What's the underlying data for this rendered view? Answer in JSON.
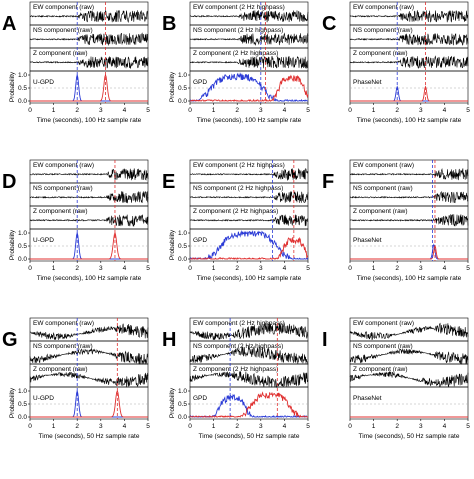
{
  "figure": {
    "colors": {
      "p_pick": "#2b3bd6",
      "s_pick": "#e03030",
      "trace": "#000000",
      "threshold": "#aaaaaa"
    }
  },
  "chart_data": [
    {
      "id": "A",
      "panel_label": "A",
      "type": "line",
      "traces": [
        "EW component (raw)",
        "NS component (raw)",
        "Z component (raw)"
      ],
      "model": "U-GPD",
      "p_pick_s": 2.0,
      "s_pick_s": 3.2,
      "onset_s": 2.0,
      "prob_ylabel": "Probability",
      "prob_yticks": [
        "0.0",
        "0.5",
        "1.0"
      ],
      "threshold": 0.5,
      "xlabel": "Time (seconds), 100 Hz sample rate",
      "xticks": [
        "0",
        "1",
        "2",
        "3",
        "4",
        "5"
      ],
      "xlim": [
        0,
        5
      ],
      "series": [
        {
          "peak_s": 2.0,
          "peak": 1.0,
          "width": 0.12
        },
        {
          "peak_s": 3.2,
          "peak": 1.0,
          "width": 0.14
        }
      ]
    },
    {
      "id": "B",
      "panel_label": "B",
      "type": "line",
      "traces": [
        "EW component (2 Hz highpass)",
        "NS component (2 Hz highpass)",
        "Z component (2 Hz highpass)"
      ],
      "model": "GPD",
      "p_pick_s": 3.0,
      "s_pick_s": 3.2,
      "onset_s": 2.0,
      "prob_ylabel": "Probability",
      "prob_yticks": [
        "0.0",
        "0.5",
        "1.0"
      ],
      "threshold": 0.5,
      "xlabel": "Time (seconds), 100 Hz sample rate",
      "xticks": [
        "0",
        "1",
        "2",
        "3",
        "4",
        "5"
      ],
      "xlim": [
        0,
        5
      ],
      "series": [
        {
          "peak_s": 2.0,
          "peak": 0.9,
          "width": 1.2,
          "noisy": true
        },
        {
          "peak_s": 4.3,
          "peak": 0.85,
          "width": 0.6,
          "noisy": true
        }
      ]
    },
    {
      "id": "C",
      "panel_label": "C",
      "type": "line",
      "traces": [
        "EW component (raw)",
        "NS component (raw)",
        "Z component (raw)"
      ],
      "model": "PhaseNet",
      "p_pick_s": 2.0,
      "s_pick_s": 3.2,
      "onset_s": 2.0,
      "prob_ylabel": "",
      "prob_yticks": [],
      "threshold": 0.5,
      "xlabel": "Time (seconds), 100 Hz sample rate",
      "xticks": [
        "0",
        "1",
        "2",
        "3",
        "4",
        "5"
      ],
      "xlim": [
        0,
        5
      ],
      "series": [
        {
          "peak_s": 2.0,
          "peak": 0.55,
          "width": 0.1
        },
        {
          "peak_s": 3.2,
          "peak": 0.55,
          "width": 0.1
        }
      ]
    },
    {
      "id": "D",
      "panel_label": "D",
      "type": "line",
      "traces": [
        "EW component (raw)",
        "NS component (raw)",
        "Z component (raw)"
      ],
      "model": "U-GPD",
      "p_pick_s": 2.0,
      "s_pick_s": 3.6,
      "onset_s": 3.2,
      "prob_ylabel": "Probability",
      "prob_yticks": [
        "0.0",
        "0.5",
        "1.0"
      ],
      "threshold": 0.5,
      "xlabel": "Time (seconds), 100 Hz sample rate",
      "xticks": [
        "0",
        "1",
        "2",
        "3",
        "4",
        "5"
      ],
      "xlim": [
        0,
        5
      ],
      "series": [
        {
          "peak_s": 2.0,
          "peak": 1.0,
          "width": 0.12
        },
        {
          "peak_s": 3.6,
          "peak": 1.0,
          "width": 0.15
        }
      ]
    },
    {
      "id": "E",
      "panel_label": "E",
      "type": "line",
      "traces": [
        "EW component (2 Hz highpass)",
        "NS component (2 Hz highpass)",
        "Z component (2 Hz highpass)"
      ],
      "model": "GPD",
      "p_pick_s": 3.5,
      "s_pick_s": 4.4,
      "onset_s": 3.5,
      "prob_ylabel": "Probability",
      "prob_yticks": [
        "0.0",
        "0.5",
        "1.0"
      ],
      "threshold": 0.5,
      "xlabel": "Time (seconds), 100 Hz sample rate",
      "xticks": [
        "0",
        "1",
        "2",
        "3",
        "4",
        "5"
      ],
      "xlim": [
        0,
        5
      ],
      "series": [
        {
          "peak_s": 2.5,
          "peak": 0.95,
          "width": 1.3,
          "noisy": true
        },
        {
          "peak_s": 4.4,
          "peak": 0.7,
          "width": 0.5,
          "noisy": true
        }
      ]
    },
    {
      "id": "F",
      "panel_label": "F",
      "type": "line",
      "traces": [
        "EW component (raw)",
        "NS component (raw)",
        "Z component (raw)"
      ],
      "model": "PhaseNet",
      "p_pick_s": 3.5,
      "s_pick_s": 3.6,
      "onset_s": 3.5,
      "prob_ylabel": "",
      "prob_yticks": [],
      "threshold": 0.5,
      "xlabel": "Time (seconds), 100 Hz sample rate",
      "xticks": [
        "0",
        "1",
        "2",
        "3",
        "4",
        "5"
      ],
      "xlim": [
        0,
        5
      ],
      "series": [
        {
          "peak_s": 3.55,
          "peak": 0.55,
          "width": 0.1
        },
        {
          "peak_s": 3.6,
          "peak": 0.5,
          "width": 0.1
        }
      ]
    },
    {
      "id": "G",
      "panel_label": "G",
      "type": "line",
      "traces": [
        "EW component (raw)",
        "NS component (raw)",
        "Z component (raw)"
      ],
      "model": "U-GPD",
      "p_pick_s": 2.0,
      "s_pick_s": 3.7,
      "onset_s": 3.5,
      "prob_ylabel": "Probability",
      "prob_yticks": [
        "0.0",
        "0.5",
        "1.0"
      ],
      "threshold": 0.5,
      "xlabel": "Time (seconds), 50 Hz sample rate",
      "xticks": [
        "0",
        "1",
        "2",
        "3",
        "4",
        "5"
      ],
      "xlim": [
        0,
        5
      ],
      "series": [
        {
          "peak_s": 2.0,
          "peak": 1.0,
          "width": 0.12
        },
        {
          "peak_s": 3.7,
          "peak": 1.0,
          "width": 0.15
        }
      ]
    },
    {
      "id": "H",
      "panel_label": "H",
      "type": "line",
      "traces": [
        "EW component (2 Hz highpass)",
        "NS component (2 Hz highpass)",
        "Z component (2 Hz highpass)"
      ],
      "model": "GPD",
      "p_pick_s": 1.7,
      "s_pick_s": 3.7,
      "onset_s": 1.7,
      "prob_ylabel": "Probability",
      "prob_yticks": [
        "0.0",
        "0.5",
        "1.0"
      ],
      "threshold": 0.5,
      "xlabel": "Time (seconds), 50 Hz sample rate",
      "xticks": [
        "0",
        "1",
        "2",
        "3",
        "4",
        "5"
      ],
      "xlim": [
        0,
        5
      ],
      "series": [
        {
          "peak_s": 1.8,
          "peak": 0.7,
          "width": 0.6,
          "noisy": true
        },
        {
          "peak_s": 3.4,
          "peak": 0.8,
          "width": 0.9,
          "noisy": true
        }
      ]
    },
    {
      "id": "I",
      "panel_label": "I",
      "type": "line",
      "traces": [
        "EW component (raw)",
        "NS component (raw)",
        "Z component (raw)"
      ],
      "model": "PhaseNet",
      "p_pick_s": null,
      "s_pick_s": null,
      "onset_s": 3.5,
      "prob_ylabel": "",
      "prob_yticks": [],
      "threshold": 0.5,
      "xlabel": "Time (seconds), 50 Hz sample rate",
      "xticks": [
        "0",
        "1",
        "2",
        "3",
        "4",
        "5"
      ],
      "xlim": [
        0,
        5
      ],
      "series": [
        {
          "peak_s": 2.0,
          "peak": 0.0,
          "width": 0.1
        },
        {
          "peak_s": 3.7,
          "peak": 0.0,
          "width": 0.1
        }
      ]
    }
  ]
}
